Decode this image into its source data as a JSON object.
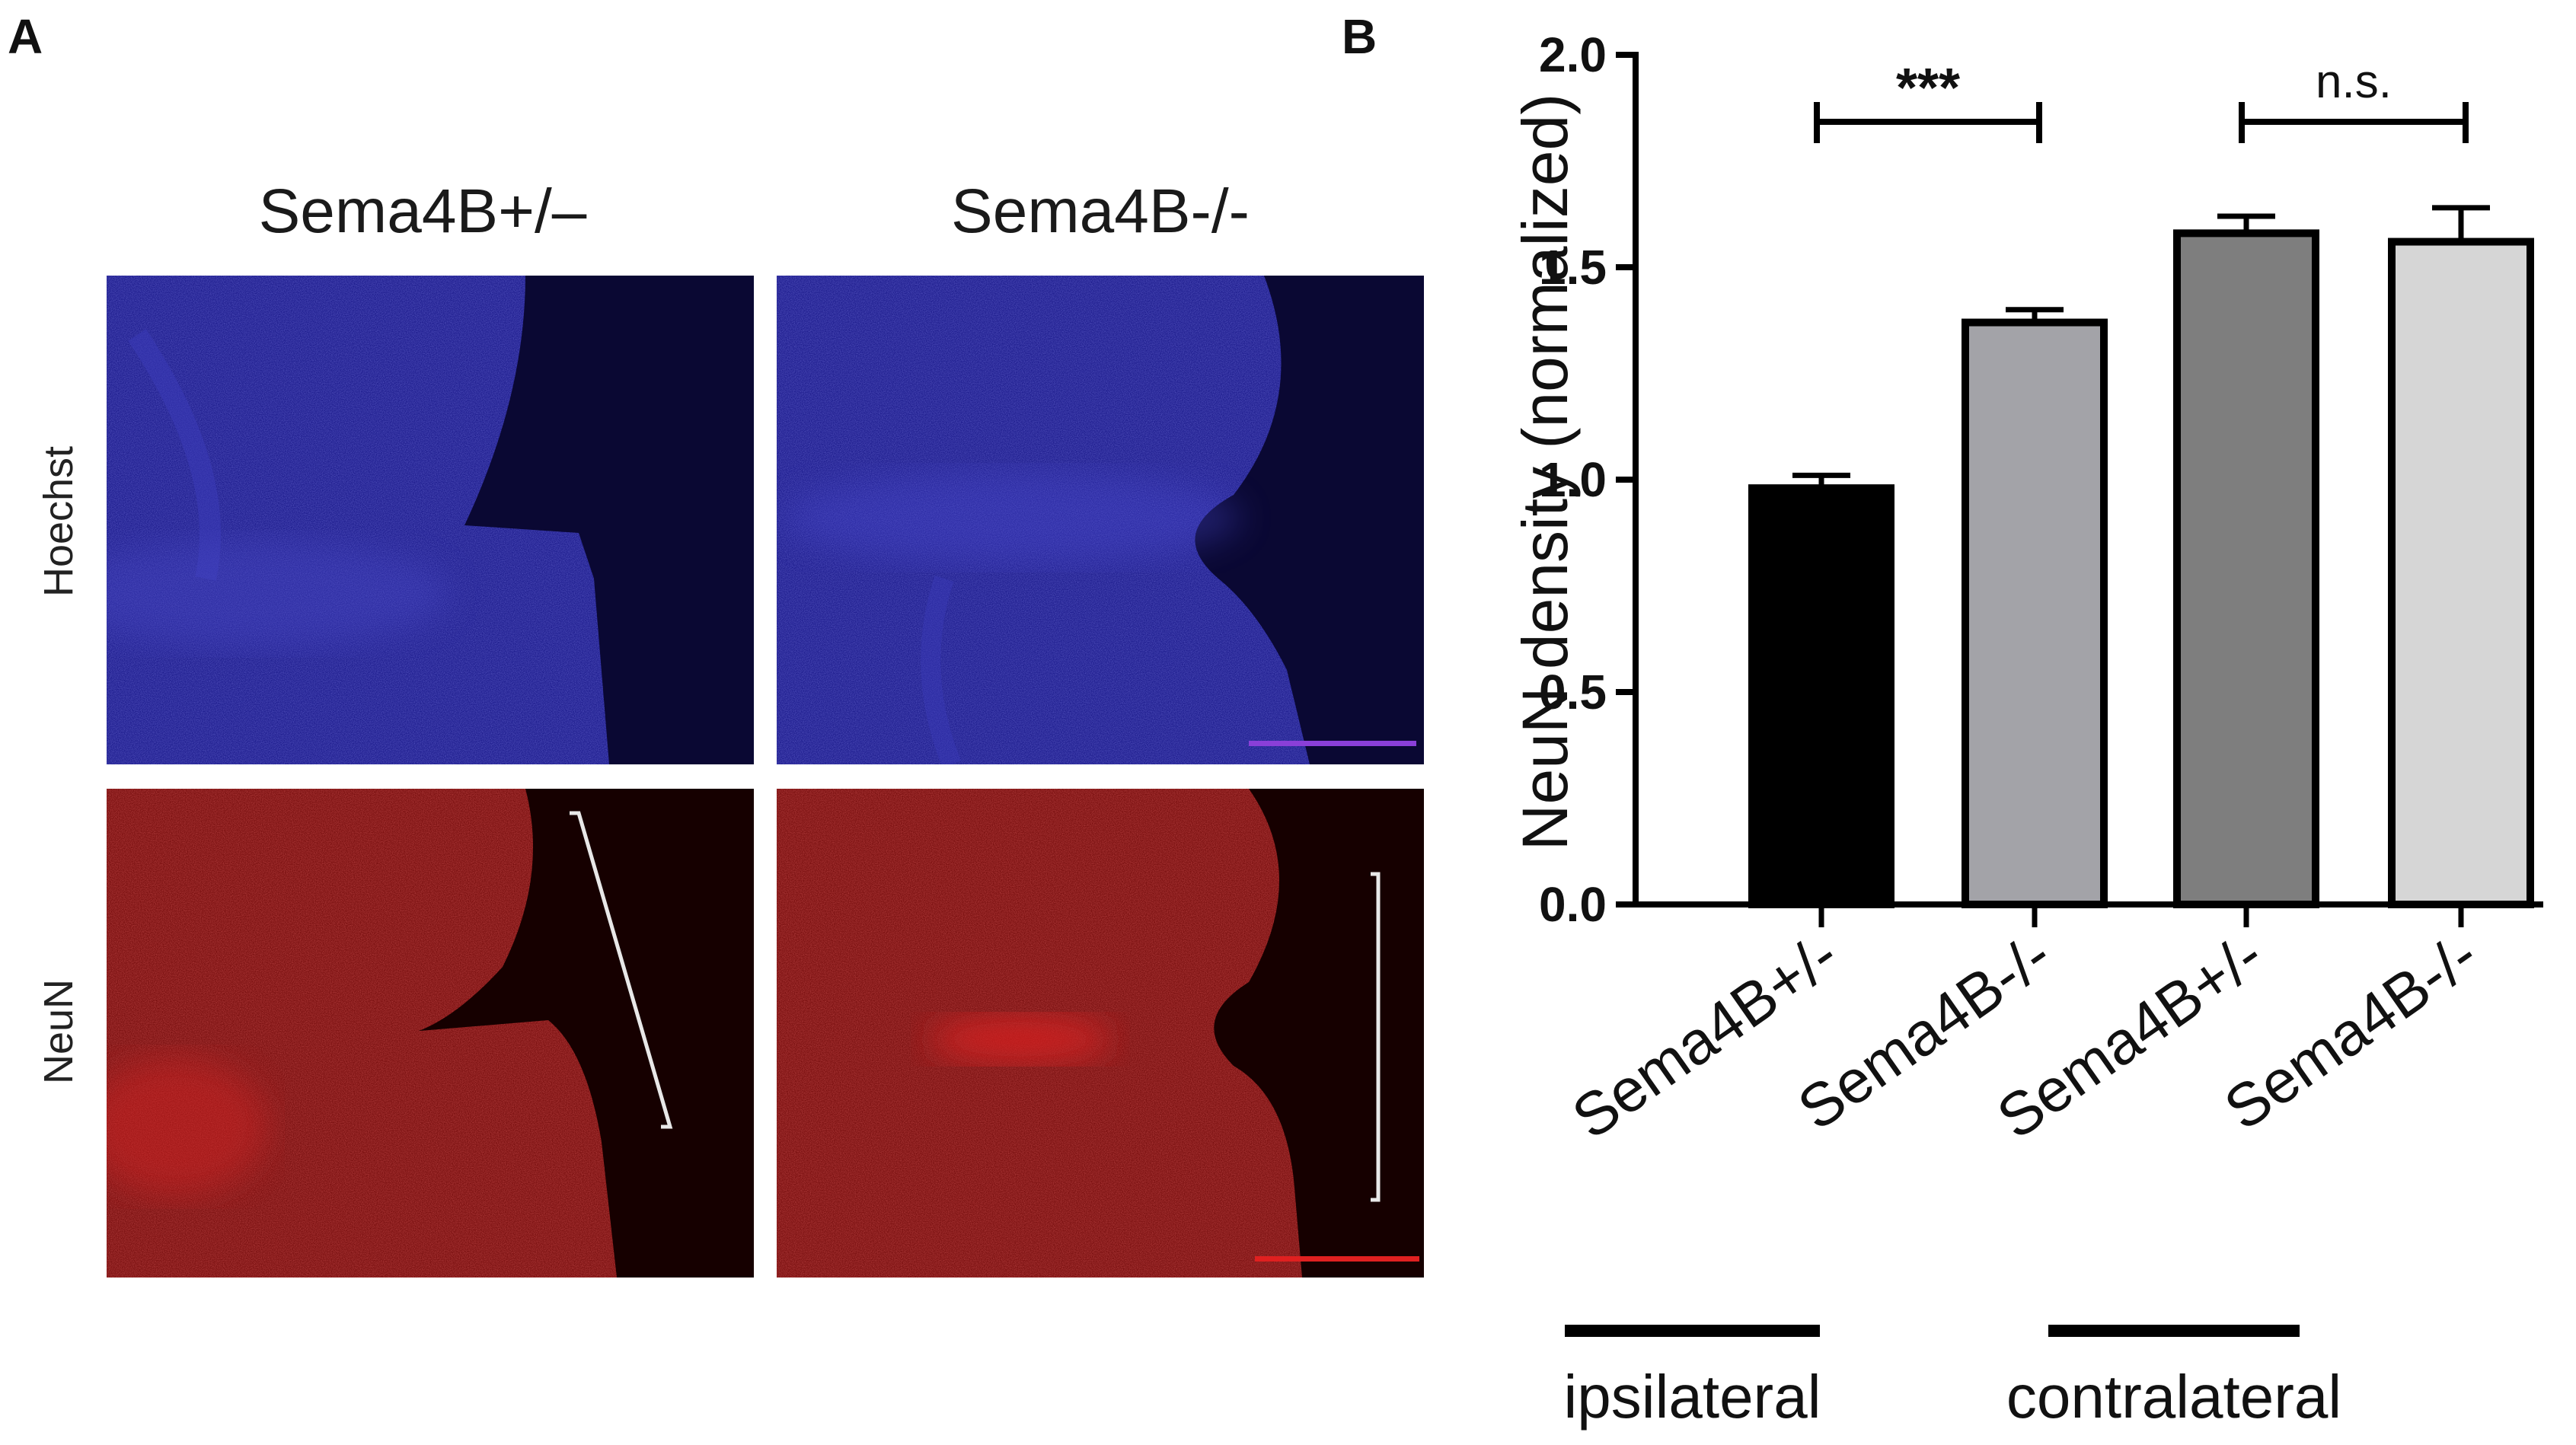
{
  "panels": {
    "a_letter": "A",
    "b_letter": "B",
    "col_labels": [
      "Sema4B+/–",
      "Sema4B-/-"
    ],
    "row_labels": [
      "Hoechst",
      "NeuN"
    ]
  },
  "colors": {
    "hoechst_bg": "#0a0833",
    "hoechst_tissue": "#1f1e8f",
    "neun_bg": "#160000",
    "neun_tissue": "#7a1010",
    "neun_bright": "#d42424",
    "scalebar_blue": "#8a3fd8",
    "scalebar_red": "#e02020"
  },
  "chart_data": {
    "type": "bar",
    "categories": [
      "Sema4B+/-",
      "Sema4B-/-",
      "Sema4B+/-",
      "Sema4B-/-"
    ],
    "values": [
      0.98,
      1.37,
      1.58,
      1.56
    ],
    "errors": [
      0.03,
      0.03,
      0.04,
      0.08
    ],
    "bar_colors": [
      "#000000",
      "#a3a3a8",
      "#7e7e7e",
      "#d6d6d6"
    ],
    "ylabel": "NeuN density (normalized)",
    "ylim": [
      0,
      2.0
    ],
    "yticks": [
      "0.0",
      "0.5",
      "1.0",
      "1.5",
      "2.0"
    ],
    "groups": [
      {
        "label": "ipsilateral",
        "categories": [
          0,
          1
        ]
      },
      {
        "label": "contralateral",
        "categories": [
          2,
          3
        ]
      }
    ],
    "significance": [
      {
        "from": 0,
        "to": 1,
        "label": "***"
      },
      {
        "from": 2,
        "to": 3,
        "label": "n.s."
      }
    ],
    "grid": false
  }
}
